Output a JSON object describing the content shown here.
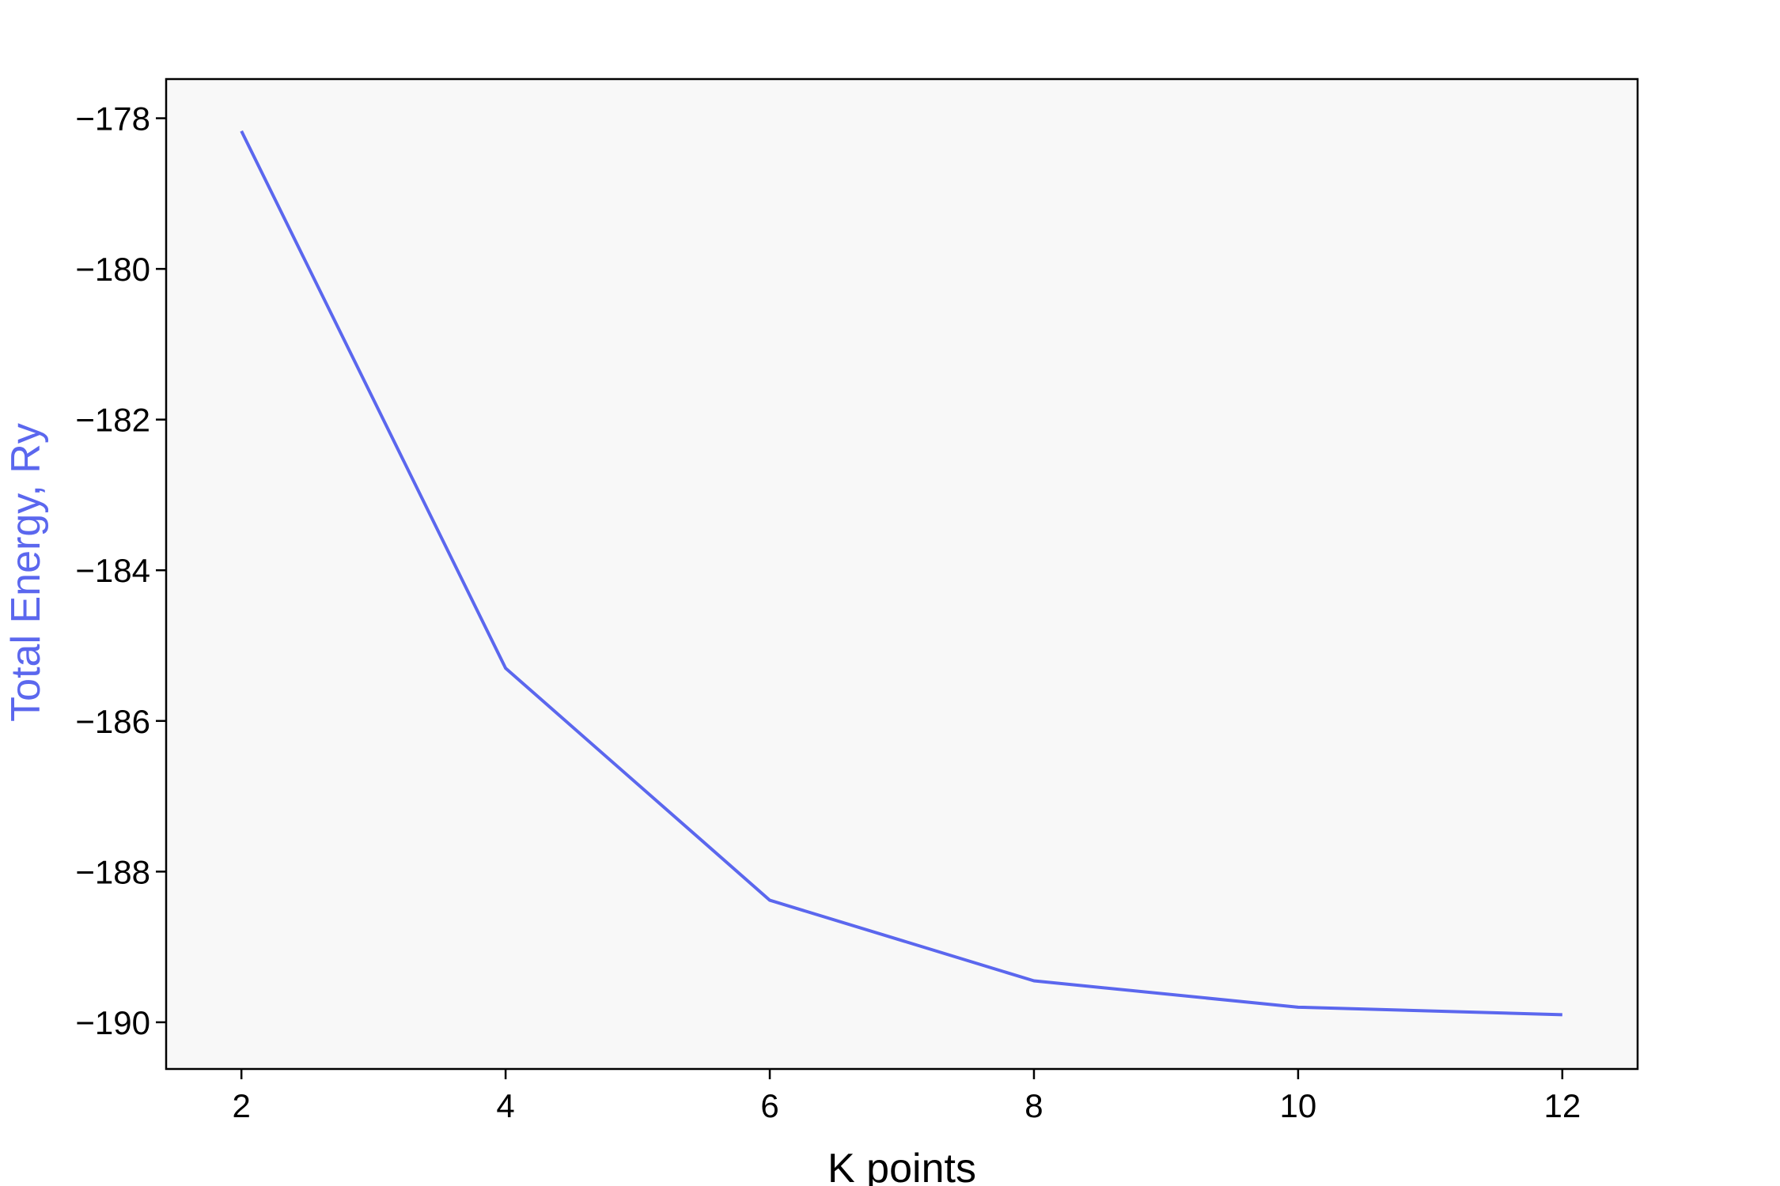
{
  "chart_data": {
    "type": "line",
    "title": "",
    "xlabel": "K points",
    "ylabel": "Total Energy, Ry",
    "x": [
      2,
      4,
      6,
      8,
      10,
      12
    ],
    "series": [
      {
        "values": [
          -178.17,
          -185.3,
          -188.38,
          -189.45,
          -189.8,
          -189.9
        ]
      }
    ],
    "xlim": [
      1.43,
      12.57
    ],
    "ylim": [
      -190.62,
      -177.48
    ],
    "xticks": [
      2,
      4,
      6,
      8,
      10,
      12
    ],
    "yticks": [
      -178,
      -180,
      -182,
      -184,
      -186,
      -188,
      -190
    ],
    "xtick_labels": [
      "2",
      "4",
      "6",
      "8",
      "10",
      "12"
    ],
    "ytick_labels": [
      "−178",
      "−180",
      "−182",
      "−184",
      "−186",
      "−188",
      "−190"
    ],
    "grid": false,
    "legend": "none",
    "colors": {
      "line": "#5b67ee",
      "ylabel": "#5b67ee",
      "plot_background": "#f8f8f8",
      "axes": "#000000"
    }
  }
}
